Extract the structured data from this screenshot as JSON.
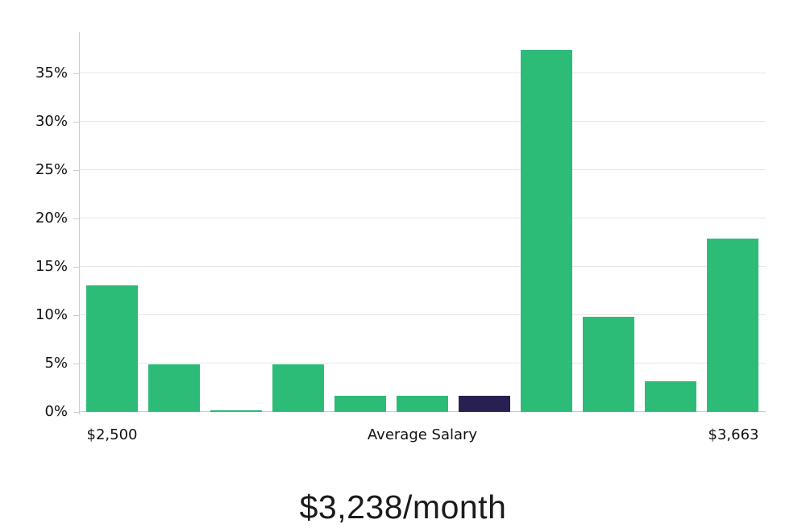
{
  "chart_data": {
    "type": "bar",
    "values": [
      13.1,
      4.9,
      0.15,
      4.9,
      1.7,
      1.7,
      1.7,
      37.4,
      9.8,
      3.2,
      17.9
    ],
    "unit": "percent",
    "highlight_index": 6,
    "y_ticks": [
      "0%",
      "5%",
      "10%",
      "15%",
      "20%",
      "25%",
      "30%",
      "35%"
    ],
    "y_tick_values": [
      0,
      5,
      10,
      15,
      20,
      25,
      30,
      35
    ],
    "ylim": [
      0,
      39.25
    ],
    "x_labels": {
      "min": "$2,500",
      "center": "Average Salary",
      "max": "$3,663"
    },
    "title": "$3,238/month",
    "grid": true,
    "legend": "none",
    "colors": {
      "bar": "#2dbc78",
      "highlight": "#282051",
      "gridline": "#e6e6e6",
      "axis": "#cccccc",
      "text": "#111111"
    }
  }
}
